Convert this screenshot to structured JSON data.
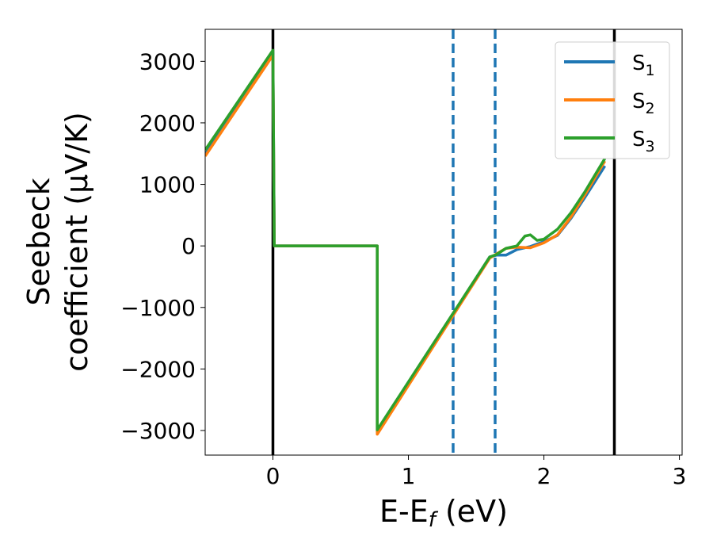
{
  "chart_data": {
    "type": "line",
    "title": "",
    "xlabel": "E-E",
    "xlabel_sub": "f",
    "xlabel_unit": " (eV)",
    "ylabel_line1": "Seebeck",
    "ylabel_line2": "coefficient  (μV/K)",
    "xlim": [
      -0.5,
      3.02
    ],
    "ylim": [
      -3400,
      3520
    ],
    "xticks": [
      0,
      1,
      2,
      3
    ],
    "xtick_labels": [
      "0",
      "1",
      "2",
      "3"
    ],
    "yticks": [
      -3000,
      -2000,
      -1000,
      0,
      1000,
      2000,
      3000
    ],
    "ytick_labels": [
      "−3000",
      "−2000",
      "−1000",
      "0",
      "1000",
      "2000",
      "3000"
    ],
    "vertical_lines": [
      {
        "x": 0.0,
        "style": "solid",
        "color": "#000000"
      },
      {
        "x": 2.52,
        "style": "solid",
        "color": "#000000"
      },
      {
        "x": 1.33,
        "style": "dashed",
        "color": "#1f77b4"
      },
      {
        "x": 1.64,
        "style": "dashed",
        "color": "#1f77b4"
      }
    ],
    "legend": "top-right",
    "series": [
      {
        "name": "S",
        "sub": "1",
        "color": "#1f77b4",
        "points": [
          [
            -0.5,
            1490
          ],
          [
            0.0,
            3130
          ],
          [
            0.01,
            0
          ],
          [
            0.77,
            0
          ],
          [
            0.77,
            -3030
          ],
          [
            1.6,
            -180
          ],
          [
            1.65,
            -150
          ],
          [
            1.72,
            -150
          ],
          [
            1.8,
            -60
          ],
          [
            1.9,
            -10
          ],
          [
            2.0,
            70
          ],
          [
            2.1,
            170
          ],
          [
            2.2,
            450
          ],
          [
            2.3,
            780
          ],
          [
            2.45,
            1300
          ]
        ]
      },
      {
        "name": "S",
        "sub": "2",
        "color": "#ff7f0e",
        "points": [
          [
            -0.5,
            1460
          ],
          [
            0.0,
            3100
          ],
          [
            0.01,
            0
          ],
          [
            0.77,
            0
          ],
          [
            0.77,
            -3060
          ],
          [
            1.6,
            -200
          ],
          [
            1.65,
            -130
          ],
          [
            1.72,
            -40
          ],
          [
            1.8,
            -20
          ],
          [
            1.9,
            -30
          ],
          [
            2.0,
            50
          ],
          [
            2.1,
            180
          ],
          [
            2.2,
            470
          ],
          [
            2.3,
            820
          ],
          [
            2.45,
            1380
          ]
        ]
      },
      {
        "name": "S",
        "sub": "3",
        "color": "#2ca02c",
        "points": [
          [
            -0.5,
            1560
          ],
          [
            0.0,
            3180
          ],
          [
            0.01,
            0
          ],
          [
            0.77,
            0
          ],
          [
            0.77,
            -2990
          ],
          [
            1.6,
            -180
          ],
          [
            1.65,
            -140
          ],
          [
            1.72,
            -40
          ],
          [
            1.8,
            0
          ],
          [
            1.86,
            160
          ],
          [
            1.9,
            180
          ],
          [
            1.95,
            90
          ],
          [
            2.0,
            110
          ],
          [
            2.1,
            270
          ],
          [
            2.2,
            540
          ],
          [
            2.3,
            870
          ],
          [
            2.45,
            1420
          ]
        ]
      }
    ]
  }
}
